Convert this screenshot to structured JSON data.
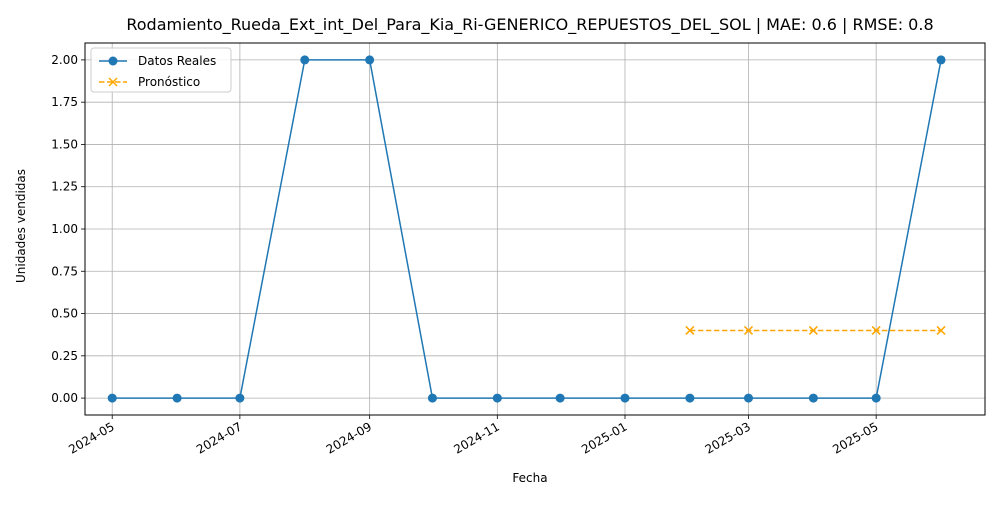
{
  "chart_data": {
    "type": "line",
    "title": "Rodamiento_Rueda_Ext_int_Del_Para_Kia_Ri-GENERICO_REPUESTOS_DEL_SOL | MAE: 0.6 | RMSE: 0.8",
    "xlabel": "Fecha",
    "ylabel": "Unidades vendidas",
    "x_ticks": [
      "2024-05",
      "2024-07",
      "2024-09",
      "2024-11",
      "2025-01",
      "2025-03",
      "2025-05"
    ],
    "y_ticks": [
      "0.00",
      "0.25",
      "0.50",
      "0.75",
      "1.00",
      "1.25",
      "1.50",
      "1.75",
      "2.00"
    ],
    "xlim": [
      "2024-04-18",
      "2025-06-22"
    ],
    "ylim": [
      -0.1,
      2.1
    ],
    "grid": true,
    "legend_position": "top-left",
    "series": [
      {
        "name": "Datos Reales",
        "color": "#1f77b4",
        "line_style": "solid",
        "marker": "circle",
        "x": [
          "2024-05-01",
          "2024-06-01",
          "2024-07-01",
          "2024-08-01",
          "2024-09-01",
          "2024-10-01",
          "2024-11-01",
          "2024-12-01",
          "2025-01-01",
          "2025-02-01",
          "2025-03-01",
          "2025-04-01",
          "2025-05-01",
          "2025-06-01"
        ],
        "values": [
          0,
          0,
          0,
          2,
          2,
          0,
          0,
          0,
          0,
          0,
          0,
          0,
          0,
          2
        ]
      },
      {
        "name": "Pronóstico",
        "color": "#ffa500",
        "line_style": "dashed",
        "marker": "x",
        "x": [
          "2025-02-01",
          "2025-03-01",
          "2025-04-01",
          "2025-05-01",
          "2025-06-01"
        ],
        "values": [
          0.4,
          0.4,
          0.4,
          0.4,
          0.4
        ]
      }
    ]
  }
}
